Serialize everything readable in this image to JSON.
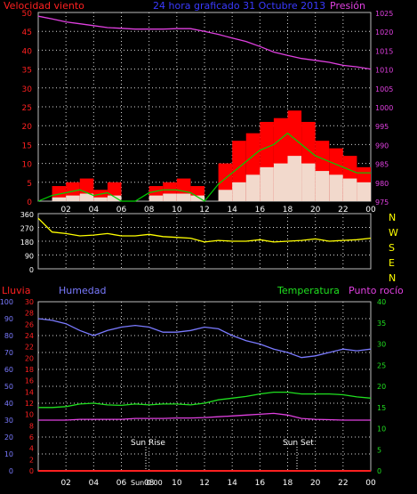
{
  "title": "24 hora graficado   31 Octubre 2013",
  "colors": {
    "background": "#000000",
    "grid": "#d8d8d8",
    "wind_axis": "#ff2020",
    "gust": "#ff0000",
    "wind_avg": "#00d000",
    "wind_min": "#f0fff0",
    "pressure": "#e040e0",
    "direction": "#ffff00",
    "rain": "#ff2020",
    "humidity": "#7a7aff",
    "temperature": "#20e020",
    "dewpoint": "#e040e0",
    "axis_text": "#ffffff"
  },
  "top_panel": {
    "left_title": "Velocidad viento",
    "right_title": "Presión",
    "left_ticks": [
      "0",
      "5",
      "10",
      "15",
      "20",
      "25",
      "30",
      "35",
      "40",
      "45",
      "50"
    ],
    "right_ticks": [
      "975",
      "980",
      "985",
      "990",
      "995",
      "1000",
      "1005",
      "1010",
      "1015",
      "1020",
      "1025"
    ]
  },
  "dir_panel": {
    "left_ticks": [
      "0",
      "90",
      "180",
      "270",
      "360"
    ],
    "compass": [
      "N",
      "W",
      "S",
      "E",
      "N"
    ]
  },
  "bottom_panel": {
    "rain_label": "Lluvia",
    "humidity_label": "Humedad",
    "temperature_label": "Temperatura",
    "dewpoint_label": "Punto rocío",
    "humidity_ticks": [
      "0",
      "10",
      "20",
      "30",
      "40",
      "50",
      "60",
      "70",
      "80",
      "90",
      "100"
    ],
    "rain_ticks": [
      "0",
      "2",
      "4",
      "6",
      "8",
      "10",
      "12",
      "14",
      "16",
      "18",
      "20",
      "22",
      "24",
      "26",
      "28",
      "30"
    ],
    "temp_ticks": [
      "0",
      "5",
      "10",
      "15",
      "20",
      "25",
      "30",
      "35",
      "40"
    ],
    "sunrise_label": "Sun Rise",
    "sunset_label": "Sun Set"
  },
  "x_ticks": [
    "02",
    "04",
    "06",
    "08",
    "10",
    "12",
    "14",
    "16",
    "18",
    "20",
    "22",
    "00"
  ],
  "x_mid_label": "Sun 0:00",
  "chart_data": [
    {
      "type": "line",
      "name_hint": "wind speed and pressure",
      "x_hours": [
        0,
        1,
        2,
        3,
        4,
        5,
        6,
        7,
        8,
        9,
        10,
        11,
        12,
        13,
        14,
        15,
        16,
        17,
        18,
        19,
        20,
        21,
        22,
        23,
        24
      ],
      "series": [
        {
          "name": "Presión",
          "axis": "right",
          "values": [
            1024,
            1023.3,
            1022.5,
            1022,
            1021.5,
            1021,
            1020.8,
            1020.6,
            1020.6,
            1020.6,
            1020.7,
            1020.7,
            1020,
            1019.2,
            1018.2,
            1017.3,
            1016,
            1014.5,
            1013.6,
            1012.8,
            1012.3,
            1011.8,
            1011,
            1010.6,
            1010
          ]
        },
        {
          "name": "gust",
          "axis": "left",
          "values": [
            0,
            4,
            5,
            6,
            3,
            5,
            0,
            0,
            4,
            5,
            6,
            4,
            0,
            10,
            16,
            18,
            21,
            22,
            24,
            21,
            16,
            14,
            12,
            9,
            8
          ]
        },
        {
          "name": "average",
          "axis": "left",
          "values": [
            0,
            1,
            1.5,
            2,
            1,
            1.5,
            0,
            0,
            1.5,
            2,
            2,
            1.5,
            0,
            3,
            5,
            7,
            9,
            10,
            12,
            10,
            8,
            7,
            6,
            5,
            5
          ]
        }
      ],
      "ylim_left": [
        0,
        50
      ],
      "ylim_right": [
        975,
        1025
      ]
    },
    {
      "type": "line",
      "name_hint": "wind direction",
      "x_hours": [
        0,
        1,
        2,
        3,
        4,
        5,
        6,
        7,
        8,
        9,
        10,
        11,
        12,
        13,
        14,
        15,
        16,
        17,
        18,
        19,
        20,
        21,
        22,
        23,
        24
      ],
      "series": [
        {
          "name": "direction",
          "values": [
            330,
            240,
            230,
            215,
            220,
            230,
            215,
            215,
            225,
            210,
            205,
            200,
            175,
            185,
            180,
            180,
            190,
            175,
            180,
            185,
            195,
            180,
            185,
            190,
            200
          ]
        }
      ],
      "ylim": [
        0,
        360
      ]
    },
    {
      "type": "line",
      "name_hint": "humidity, temperature, dew point, rain",
      "x_hours": [
        0,
        1,
        2,
        3,
        4,
        5,
        6,
        7,
        8,
        9,
        10,
        11,
        12,
        13,
        14,
        15,
        16,
        17,
        18,
        19,
        20,
        21,
        22,
        23,
        24
      ],
      "series": [
        {
          "name": "Humedad",
          "axis": "humidity",
          "values": [
            90,
            89,
            87,
            83,
            80,
            83,
            85,
            86,
            85,
            82,
            82,
            83,
            85,
            84,
            80,
            77,
            75,
            72,
            70,
            67,
            68,
            70,
            72,
            71,
            72
          ]
        },
        {
          "name": "Temperatura",
          "axis": "temp",
          "values": [
            15,
            15,
            15.2,
            15.8,
            16,
            15.6,
            15.5,
            15.8,
            15.6,
            15.8,
            15.8,
            15.6,
            16,
            16.8,
            17.2,
            17.6,
            18.2,
            18.6,
            18.6,
            18.2,
            18.2,
            18.2,
            18,
            17.5,
            17.2
          ]
        },
        {
          "name": "Punto rocío",
          "axis": "temp",
          "values": [
            12,
            12,
            12,
            12.2,
            12.2,
            12.2,
            12.2,
            12.4,
            12.4,
            12.4,
            12.5,
            12.5,
            12.6,
            12.8,
            13,
            13.2,
            13.4,
            13.6,
            13.2,
            12.4,
            12.2,
            12.1,
            12,
            12,
            12
          ]
        },
        {
          "name": "Lluvia",
          "axis": "rain",
          "values": [
            0,
            0,
            0,
            0,
            0,
            0,
            0,
            0,
            0,
            0,
            0,
            0,
            0,
            0,
            0,
            0,
            0,
            0,
            0,
            0,
            0,
            0,
            0,
            0,
            0
          ]
        }
      ],
      "ylim_humidity": [
        0,
        100
      ],
      "ylim_temp": [
        0,
        40
      ],
      "ylim_rain": [
        0,
        30
      ]
    }
  ]
}
